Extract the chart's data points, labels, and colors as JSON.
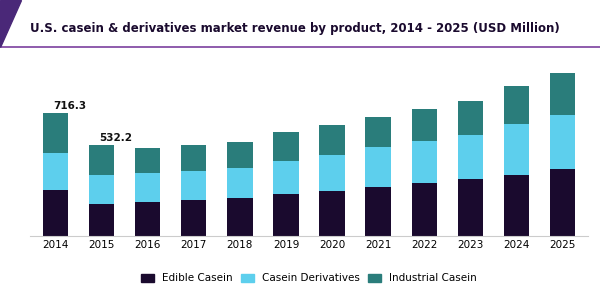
{
  "title": "U.S. casein & derivatives market revenue by product, 2014 - 2025 (USD Million)",
  "years": [
    "2014",
    "2015",
    "2016",
    "2017",
    "2018",
    "2019",
    "2020",
    "2021",
    "2022",
    "2023",
    "2024",
    "2025"
  ],
  "edible_casein": [
    270,
    188,
    200,
    210,
    222,
    245,
    262,
    285,
    308,
    332,
    358,
    392
  ],
  "casein_derivatives": [
    218,
    168,
    168,
    168,
    175,
    195,
    210,
    235,
    248,
    258,
    295,
    318
  ],
  "industrial_casein": [
    228,
    176,
    148,
    152,
    155,
    165,
    178,
    178,
    188,
    200,
    222,
    245
  ],
  "annotation_2014": "716.3",
  "annotation_2015": "532.2",
  "colors": {
    "edible_casein": "#1a0a2e",
    "casein_derivatives": "#5dcfed",
    "industrial_casein": "#2a7d7b",
    "title_color": "#1a0a2e",
    "background": "#ffffff"
  },
  "legend_labels": [
    "Edible Casein",
    "Casein Derivatives",
    "Industrial Casein"
  ],
  "accent_left": "#5a3d82",
  "accent_right": "#9b2d8f",
  "ylim": [
    0,
    1000
  ],
  "bar_width": 0.55
}
